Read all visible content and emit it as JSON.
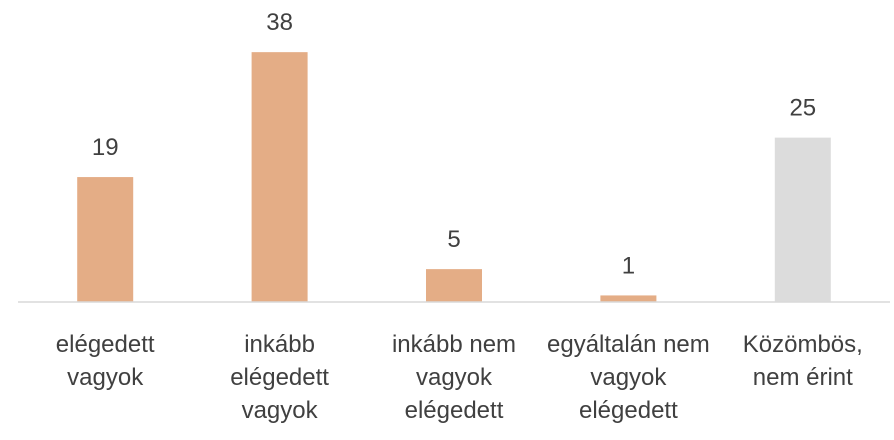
{
  "chart_data": {
    "type": "bar",
    "categories": [
      "elégedett vagyok",
      "inkább elégedett vagyok",
      "inkább nem vagyok elégedett",
      "egyáltalán nem vagyok elégedett",
      "Közömbös, nem érint"
    ],
    "values": [
      19,
      38,
      5,
      1,
      25
    ],
    "colors": [
      "#e4ad86",
      "#e4ad86",
      "#e4ad86",
      "#e4ad86",
      "#dcdcdc"
    ],
    "ylim": [
      0,
      40
    ]
  }
}
